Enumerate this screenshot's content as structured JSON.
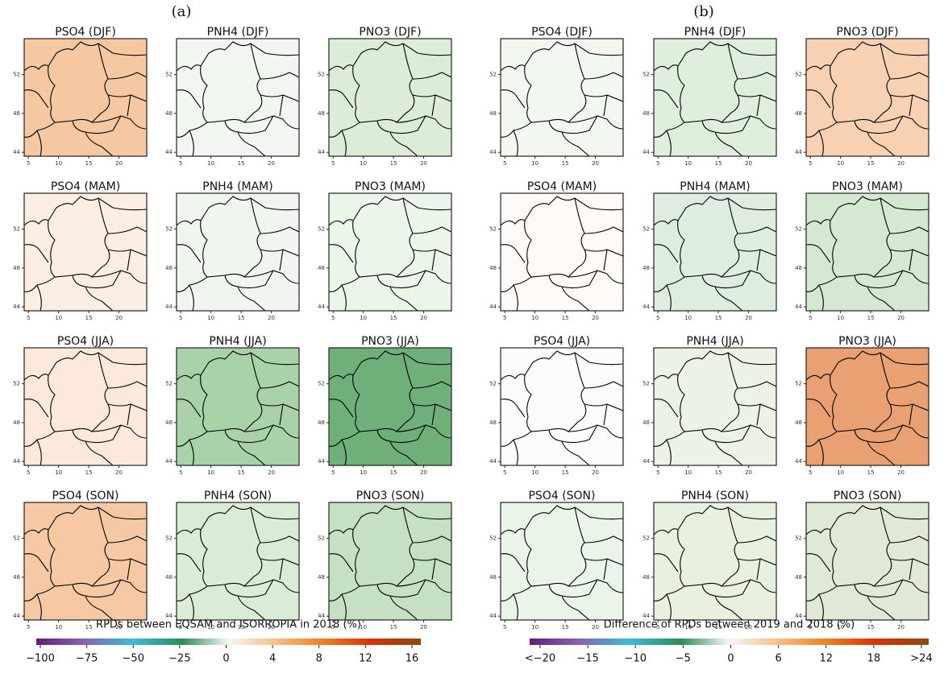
{
  "axes": {
    "xticks": [
      5,
      10,
      15,
      20
    ],
    "yticks": [
      44,
      48,
      52
    ],
    "xlim": [
      4.3,
      24.6
    ],
    "ylim": [
      43.6,
      55.7
    ]
  },
  "groups": [
    {
      "label": "(a)",
      "panels": [
        {
          "title": "PSO4 (DJF)",
          "color": "#f6c8a2"
        },
        {
          "title": "PNH4 (DJF)",
          "color": "#f1f6f0"
        },
        {
          "title": "PNO3 (DJF)",
          "color": "#dcecd8"
        },
        {
          "title": "PSO4 (MAM)",
          "color": "#fdeee3"
        },
        {
          "title": "PNH4 (MAM)",
          "color": "#f0f6ef"
        },
        {
          "title": "PNO3 (MAM)",
          "color": "#ecf5ea"
        },
        {
          "title": "PSO4 (JJA)",
          "color": "#fde9dc"
        },
        {
          "title": "PNH4 (JJA)",
          "color": "#a9d2a9"
        },
        {
          "title": "PNO3 (JJA)",
          "color": "#6fb07a"
        },
        {
          "title": "PSO4 (SON)",
          "color": "#f6c9a4"
        },
        {
          "title": "PNH4 (SON)",
          "color": "#dbecd6"
        },
        {
          "title": "PNO3 (SON)",
          "color": "#c5e0c3"
        }
      ],
      "colorbar": {
        "title": "RPDs between EQSAM and ISORROPIA in 2018 (%)",
        "ticks": [
          "−100",
          "−75",
          "−50",
          "−25",
          "0",
          "4",
          "8",
          "12",
          "16"
        ]
      }
    },
    {
      "label": "(b)",
      "panels": [
        {
          "title": "PSO4 (DJF)",
          "color": "#f2f7f0"
        },
        {
          "title": "PNH4 (DJF)",
          "color": "#dfeedd"
        },
        {
          "title": "PNO3 (DJF)",
          "color": "#f7d1b2"
        },
        {
          "title": "PSO4 (MAM)",
          "color": "#fefaf8"
        },
        {
          "title": "PNH4 (MAM)",
          "color": "#deede0"
        },
        {
          "title": "PNO3 (MAM)",
          "color": "#d5e8d2"
        },
        {
          "title": "PSO4 (JJA)",
          "color": "#fbfdfb"
        },
        {
          "title": "PNH4 (JJA)",
          "color": "#ecf3e6"
        },
        {
          "title": "PNO3 (JJA)",
          "color": "#e9a072"
        },
        {
          "title": "PSO4 (SON)",
          "color": "#eaf4e9"
        },
        {
          "title": "PNH4 (SON)",
          "color": "#e8f0e0"
        },
        {
          "title": "PNO3 (SON)",
          "color": "#e0e9d5"
        }
      ],
      "colorbar": {
        "title": "Difference of RPDs between 2019 and 2018 (%)",
        "ticks": [
          "<−20",
          "−15",
          "−10",
          "−5",
          "0",
          "6",
          "12",
          "18",
          ">24"
        ]
      }
    }
  ]
}
